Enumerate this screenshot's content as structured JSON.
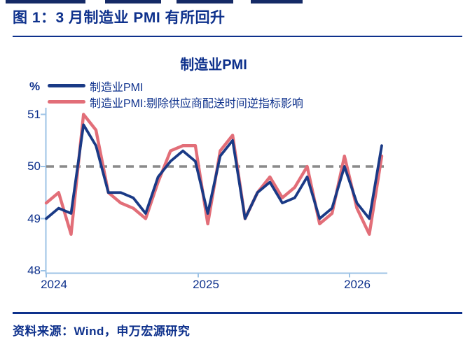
{
  "figure": {
    "title": "图 1：3 月制造业 PMI 有所回升",
    "source": "资料来源：Wind，申万宏源研究"
  },
  "chart_data": {
    "type": "line",
    "title": "制造业PMI",
    "unit_label": "%",
    "x": [
      "2023-12",
      "2024-01",
      "2024-02",
      "2024-03",
      "2024-04",
      "2024-05",
      "2024-06",
      "2024-07",
      "2024-08",
      "2024-09",
      "2024-10",
      "2024-11",
      "2024-12",
      "2025-01",
      "2025-02",
      "2025-03",
      "2025-04",
      "2025-05",
      "2025-06",
      "2025-07",
      "2025-08",
      "2025-09",
      "2025-10",
      "2025-11",
      "2025-12",
      "2026-01",
      "2026-02",
      "2026-03"
    ],
    "x_tick_labels": [
      "2024",
      "2025",
      "2026"
    ],
    "ylim": [
      48,
      51
    ],
    "yticks": [
      48,
      49,
      50,
      51
    ],
    "reference_line_y": 50,
    "grid": false,
    "legend_position": "top-left",
    "axis_color": "#9dc3e6",
    "reference_line_color": "#8a8a8a",
    "series": [
      {
        "name": "制造业PMI",
        "color": "#1a3a86",
        "values": [
          49.0,
          49.2,
          49.1,
          50.8,
          50.4,
          49.5,
          49.5,
          49.4,
          49.1,
          49.8,
          50.1,
          50.3,
          50.1,
          49.1,
          50.2,
          50.5,
          49.0,
          49.5,
          49.7,
          49.3,
          49.4,
          49.8,
          49.0,
          49.2,
          50.0,
          49.3,
          49.0,
          50.4
        ]
      },
      {
        "name": "制造业PMI:剔除供应商配送时间逆指标影响",
        "color": "#e26e78",
        "values": [
          49.3,
          49.5,
          48.7,
          51.0,
          50.7,
          49.5,
          49.3,
          49.2,
          49.0,
          49.7,
          50.3,
          50.4,
          50.4,
          48.9,
          50.3,
          50.6,
          49.0,
          49.5,
          49.8,
          49.4,
          49.6,
          50.0,
          48.9,
          49.1,
          50.2,
          49.2,
          48.7,
          50.2
        ]
      }
    ]
  }
}
